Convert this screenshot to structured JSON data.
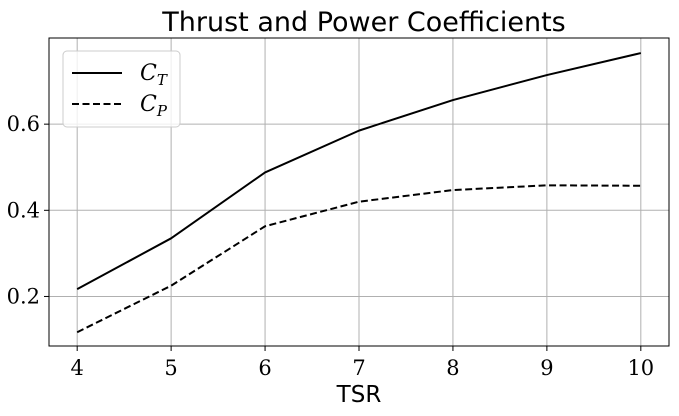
{
  "chart_data": {
    "type": "line",
    "title": "Thrust and Power Coefficients",
    "xlabel": "TSR",
    "ylabel": "",
    "x": [
      4,
      5,
      6,
      7,
      8,
      9,
      10
    ],
    "xlim": [
      3.7,
      10.3
    ],
    "ylim": [
      0.085,
      0.8
    ],
    "xticks": [
      "4",
      "5",
      "6",
      "7",
      "8",
      "9",
      "10"
    ],
    "yticks": [
      "0.2",
      "0.4",
      "0.6"
    ],
    "grid": true,
    "legend_position": "upper-left",
    "series": [
      {
        "name": "C_T",
        "label_main": "C",
        "label_sub": "T",
        "style": "solid",
        "color": "#000000",
        "values": [
          0.217,
          0.335,
          0.488,
          0.585,
          0.656,
          0.714,
          0.765
        ]
      },
      {
        "name": "C_P",
        "label_main": "C",
        "label_sub": "P",
        "style": "dashed",
        "color": "#000000",
        "values": [
          0.117,
          0.225,
          0.363,
          0.42,
          0.447,
          0.458,
          0.457
        ]
      }
    ]
  }
}
